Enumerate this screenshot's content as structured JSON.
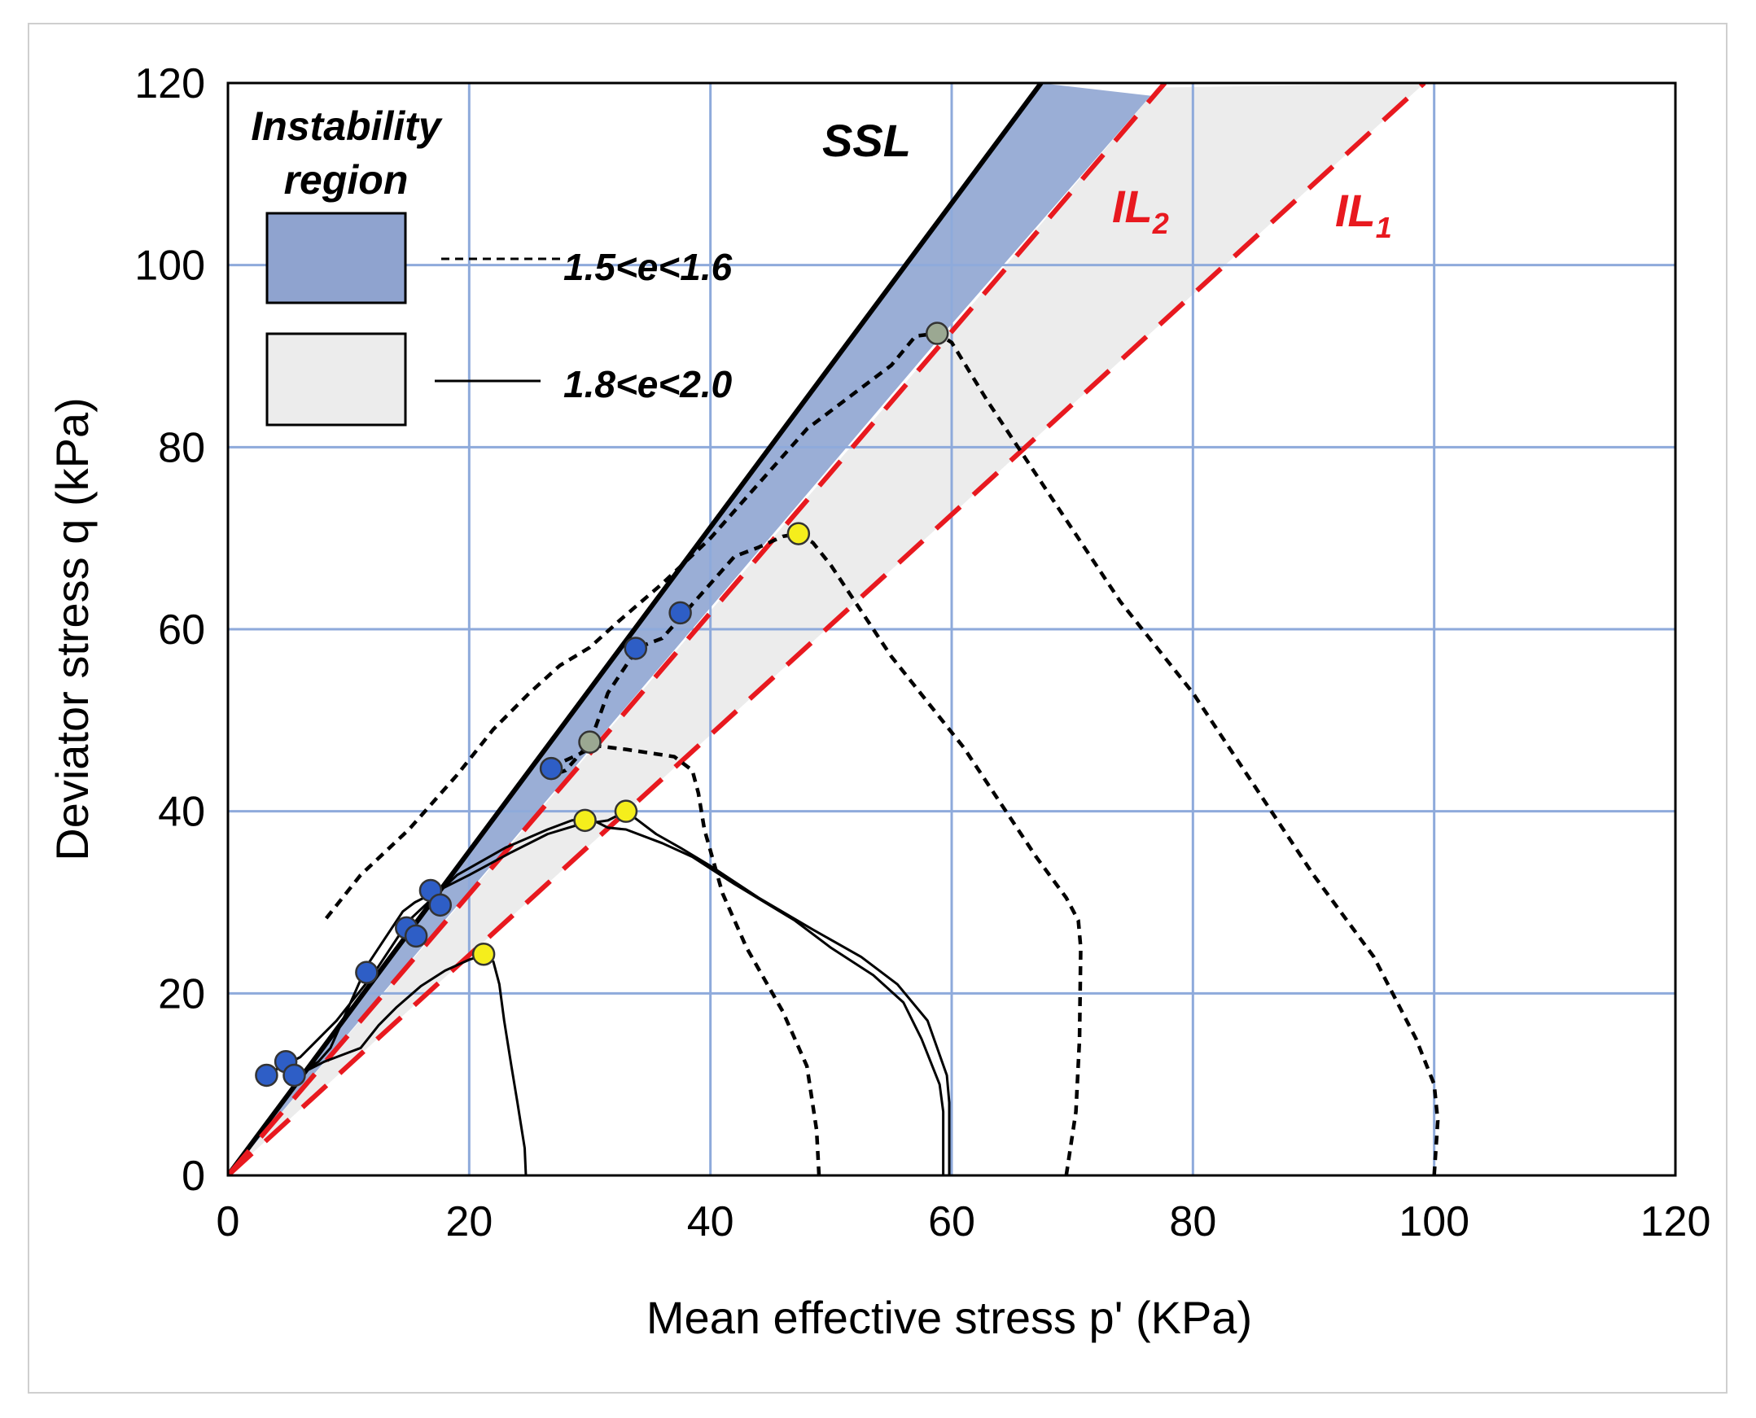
{
  "chart_data": {
    "type": "line",
    "xlabel": "Mean effective stress p' (KPa)",
    "ylabel": "Deviator stress q (kPa)",
    "xlim": [
      0,
      120
    ],
    "ylim": [
      0,
      120
    ],
    "xticks": [
      "0",
      "20",
      "40",
      "60",
      "80",
      "100",
      "120"
    ],
    "yticks": [
      "0",
      "20",
      "40",
      "60",
      "80",
      "100",
      "120"
    ],
    "grid": true,
    "grid_color": "#8eaadb",
    "legend_position": "top-left",
    "legend": {
      "title": "Instability region",
      "entries": [
        {
          "label": "1.5<e<1.6",
          "swatch_color": "#8fa3cf",
          "line_style": "dashed"
        },
        {
          "label": "1.8<e<2.0",
          "swatch_color": "#ececec",
          "line_style": "solid"
        }
      ]
    },
    "annotations": [
      {
        "text": "SSL",
        "color": "#000000"
      },
      {
        "text": "IL",
        "subscript": "2",
        "color": "#e8191f"
      },
      {
        "text": "IL",
        "subscript": "1",
        "color": "#e8191f"
      }
    ],
    "reference_lines": [
      {
        "name": "SSL",
        "slope": 1.78,
        "color": "#000000",
        "style": "solid"
      },
      {
        "name": "IL2",
        "slope": 1.545,
        "color": "#e8191f",
        "style": "dashed"
      },
      {
        "name": "IL1",
        "slope": 1.21,
        "color": "#e8191f",
        "style": "dashed"
      }
    ],
    "regions": [
      {
        "name": "instability-region-1.5<e<1.6",
        "color": "#9aaed6",
        "points": [
          [
            0,
            0
          ],
          [
            67.3,
            120
          ],
          [
            76.5,
            118.6
          ],
          [
            59,
            92
          ],
          [
            0,
            0
          ]
        ]
      },
      {
        "name": "instability-region-1.8<e<2.0",
        "color": "#ececec",
        "points": [
          [
            0,
            0
          ],
          [
            76.5,
            118.6
          ],
          [
            77,
            119.5
          ],
          [
            99.2,
            120
          ],
          [
            0,
            0
          ]
        ]
      }
    ],
    "series": [
      {
        "style": "dashed",
        "points": [
          [
            100,
            0
          ],
          [
            100.3,
            6
          ],
          [
            100,
            10
          ],
          [
            98.5,
            15
          ],
          [
            95,
            24
          ],
          [
            90,
            33
          ],
          [
            85,
            43
          ],
          [
            80,
            53
          ],
          [
            74,
            63
          ],
          [
            68,
            75
          ],
          [
            63,
            85
          ],
          [
            60,
            91.5
          ],
          [
            58.8,
            92.5
          ],
          [
            57,
            92.2
          ],
          [
            55,
            89
          ],
          [
            52,
            86
          ],
          [
            48,
            82
          ],
          [
            44,
            76
          ],
          [
            40,
            70
          ],
          [
            36,
            65
          ],
          [
            32.5,
            61
          ],
          [
            30,
            58
          ],
          [
            27.5,
            56
          ],
          [
            25,
            53
          ],
          [
            22,
            49
          ],
          [
            19,
            44
          ],
          [
            15,
            38
          ],
          [
            11,
            33
          ],
          [
            8,
            28
          ]
        ]
      },
      {
        "style": "dashed",
        "points": [
          [
            69.5,
            0
          ],
          [
            70.3,
            7
          ],
          [
            70.6,
            15
          ],
          [
            70.7,
            25
          ],
          [
            70.5,
            28
          ],
          [
            69.5,
            30.5
          ],
          [
            67,
            35
          ],
          [
            64,
            41
          ],
          [
            61,
            47
          ],
          [
            58,
            52
          ],
          [
            55,
            57
          ],
          [
            53,
            61
          ],
          [
            51.5,
            64
          ],
          [
            50,
            67
          ],
          [
            48.5,
            69.5
          ],
          [
            47.3,
            70.5
          ],
          [
            46,
            70.2
          ],
          [
            44,
            69
          ],
          [
            42,
            68
          ],
          [
            40,
            65
          ],
          [
            38,
            62
          ],
          [
            36,
            59
          ],
          [
            34,
            58
          ],
          [
            33,
            56
          ],
          [
            31.5,
            53
          ],
          [
            30,
            47.5
          ],
          [
            28,
            44.5
          ],
          [
            27,
            44
          ]
        ]
      },
      {
        "style": "dashed",
        "points": [
          [
            49,
            0
          ],
          [
            48.8,
            5
          ],
          [
            48,
            12
          ],
          [
            46,
            18
          ],
          [
            43,
            25
          ],
          [
            41,
            31
          ],
          [
            39.5,
            38
          ],
          [
            39,
            42
          ],
          [
            38.5,
            44.5
          ],
          [
            37,
            46
          ],
          [
            33,
            46.8
          ],
          [
            30.5,
            47.2
          ],
          [
            29,
            46.2
          ],
          [
            27,
            45
          ]
        ]
      },
      {
        "style": "solid",
        "points": [
          [
            59.3,
            0
          ],
          [
            59.3,
            7
          ],
          [
            59,
            10
          ],
          [
            57.5,
            15
          ],
          [
            56,
            19
          ],
          [
            53.5,
            22
          ],
          [
            50,
            25
          ],
          [
            47,
            28
          ],
          [
            42,
            32
          ],
          [
            38.5,
            35
          ],
          [
            36,
            36.5
          ],
          [
            33,
            38
          ],
          [
            31.5,
            38.2
          ],
          [
            30,
            39.2
          ],
          [
            28.5,
            39
          ],
          [
            26.5,
            38
          ],
          [
            23,
            36
          ],
          [
            19,
            33
          ],
          [
            15,
            28
          ],
          [
            12,
            22
          ],
          [
            9,
            17
          ],
          [
            6,
            13
          ],
          [
            3.5,
            11.3
          ]
        ]
      },
      {
        "style": "solid",
        "points": [
          [
            59.8,
            0
          ],
          [
            59.8,
            8
          ],
          [
            59.6,
            11
          ],
          [
            58,
            17
          ],
          [
            55.5,
            21
          ],
          [
            52.5,
            24
          ],
          [
            48.5,
            27
          ],
          [
            44,
            30.5
          ],
          [
            40,
            34
          ],
          [
            37.5,
            36
          ],
          [
            35.5,
            37.5
          ],
          [
            34,
            39
          ],
          [
            33,
            40
          ],
          [
            31.5,
            39
          ],
          [
            29,
            38.5
          ],
          [
            26.5,
            37.5
          ],
          [
            23.5,
            35.5
          ],
          [
            20,
            33
          ],
          [
            17,
            31
          ],
          [
            15.5,
            30
          ],
          [
            14.5,
            29
          ],
          [
            13,
            26
          ],
          [
            11.5,
            23
          ],
          [
            10.5,
            20
          ],
          [
            9.5,
            17
          ],
          [
            8.5,
            14
          ],
          [
            7.5,
            12.5
          ],
          [
            6,
            11.2
          ],
          [
            5,
            12.5
          ]
        ]
      },
      {
        "style": "solid",
        "points": [
          [
            24.7,
            0
          ],
          [
            24.6,
            3
          ],
          [
            24,
            8
          ],
          [
            23.5,
            12
          ],
          [
            22.9,
            17
          ],
          [
            22.5,
            21
          ],
          [
            22,
            23.5
          ],
          [
            21.2,
            24.2
          ],
          [
            20,
            23.7
          ],
          [
            18,
            22.5
          ],
          [
            16,
            20.8
          ],
          [
            14,
            18.5
          ],
          [
            12.5,
            16.5
          ],
          [
            11,
            14
          ],
          [
            10,
            13.5
          ],
          [
            9,
            13
          ],
          [
            8,
            12.5
          ],
          [
            6.5,
            11.5
          ],
          [
            5.5,
            11
          ]
        ]
      }
    ],
    "markers": [
      {
        "color": "#2e5ec6",
        "points": [
          [
            3.2,
            11
          ],
          [
            4.8,
            12.5
          ],
          [
            5.5,
            11
          ],
          [
            11.5,
            22.3
          ],
          [
            14.8,
            27.2
          ],
          [
            15.6,
            26.3
          ],
          [
            16.8,
            31.3
          ],
          [
            17.6,
            29.7
          ],
          [
            26.8,
            44.7
          ],
          [
            33.8,
            57.9
          ],
          [
            37.5,
            61.8
          ]
        ]
      },
      {
        "color": "#f5ee1c",
        "points": [
          [
            21.2,
            24.3
          ],
          [
            29.6,
            39
          ],
          [
            33,
            40
          ],
          [
            47.3,
            70.5
          ]
        ]
      },
      {
        "color": "#9ba892",
        "points": [
          [
            30,
            47.6
          ],
          [
            58.8,
            92.5
          ]
        ]
      }
    ]
  }
}
